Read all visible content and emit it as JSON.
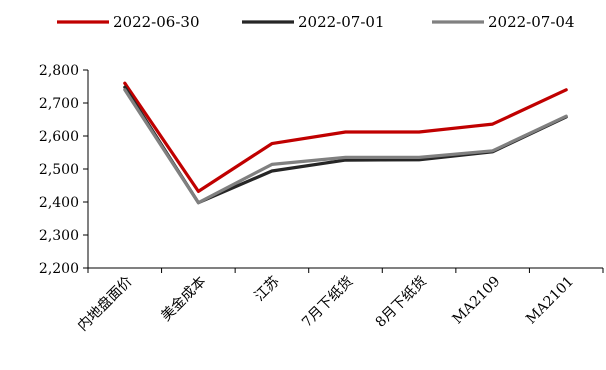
{
  "chart_data": {
    "type": "line",
    "title": "",
    "xlabel": "",
    "ylabel": "",
    "categories": [
      "内地盘面价",
      "美金成本",
      "江苏",
      "7月下纸货",
      "8月下纸货",
      "MA2109",
      "MA2101"
    ],
    "ylim": [
      2200,
      2800
    ],
    "yticks": [
      2200,
      2300,
      2400,
      2500,
      2600,
      2700,
      2800
    ],
    "ytick_labels": [
      "2,200",
      "2,300",
      "2,400",
      "2,500",
      "2,600",
      "2,700",
      "2,800"
    ],
    "grid": false,
    "legend_position": "top",
    "series": [
      {
        "name": "2022-06-30",
        "color": "#C00000",
        "values": [
          2760,
          2432,
          2577,
          2612,
          2612,
          2636,
          2740
        ]
      },
      {
        "name": "2022-07-01",
        "color": "#262626",
        "values": [
          2748,
          2398,
          2494,
          2527,
          2528,
          2552,
          2658
        ]
      },
      {
        "name": "2022-07-04",
        "color": "#808080",
        "values": [
          2740,
          2398,
          2514,
          2535,
          2535,
          2555,
          2660
        ]
      }
    ]
  }
}
